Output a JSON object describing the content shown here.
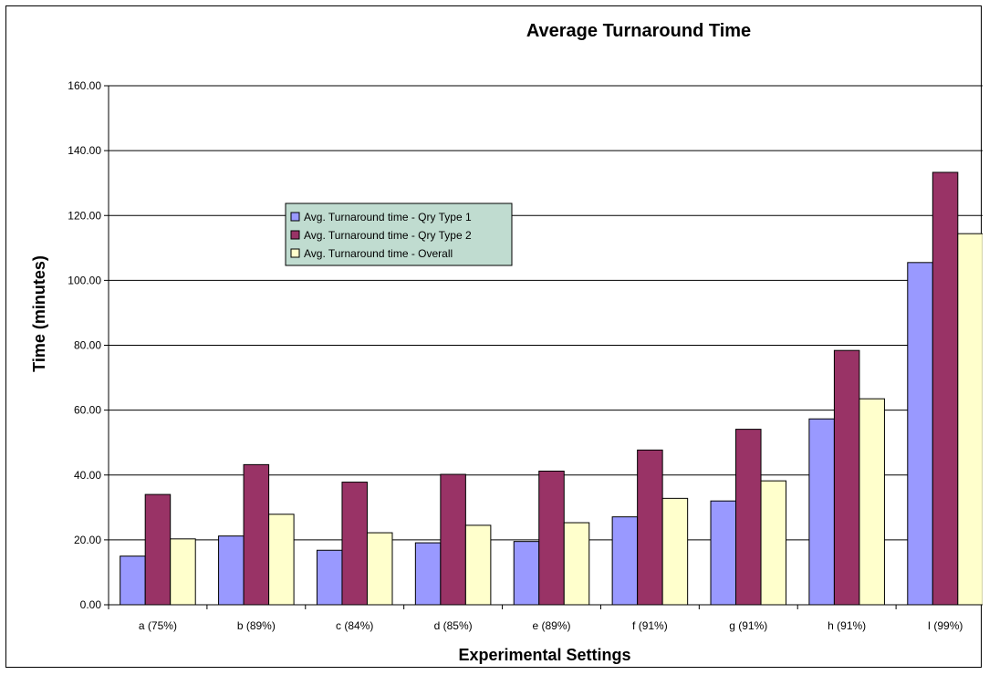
{
  "chart_data": {
    "type": "bar",
    "title": "Average Turnaround Time",
    "xlabel": "Experimental Settings",
    "ylabel": "Time (minutes)",
    "ylim": [
      0,
      160
    ],
    "yticks": [
      0,
      20,
      40,
      60,
      80,
      100,
      120,
      140,
      160
    ],
    "ytick_labels": [
      "0.00",
      "20.00",
      "40.00",
      "60.00",
      "80.00",
      "100.00",
      "120.00",
      "140.00",
      "160.00"
    ],
    "grid": true,
    "legend_position": "left-middle",
    "categories": [
      "a (75%)",
      "b (89%)",
      "c (84%)",
      "d (85%)",
      "e (89%)",
      "f (91%)",
      "g (91%)",
      "h (91%)",
      "I (99%)"
    ],
    "series": [
      {
        "name": "Avg. Turnaround time - Qry Type 1",
        "color": "#9999ff",
        "values": [
          15.0,
          21.2,
          16.8,
          19.1,
          19.5,
          27.1,
          32.0,
          57.3,
          105.5
        ]
      },
      {
        "name": "Avg. Turnaround time - Qry Type 2",
        "color": "#993366",
        "values": [
          34.0,
          43.2,
          37.8,
          40.2,
          41.2,
          47.7,
          54.1,
          78.4,
          133.3
        ]
      },
      {
        "name": "Avg. Turnaround time - Overall",
        "color": "#ffffcc",
        "values": [
          20.3,
          27.9,
          22.2,
          24.5,
          25.3,
          32.8,
          38.2,
          63.5,
          114.4
        ]
      }
    ],
    "legend_background": "#c0dcd0"
  }
}
